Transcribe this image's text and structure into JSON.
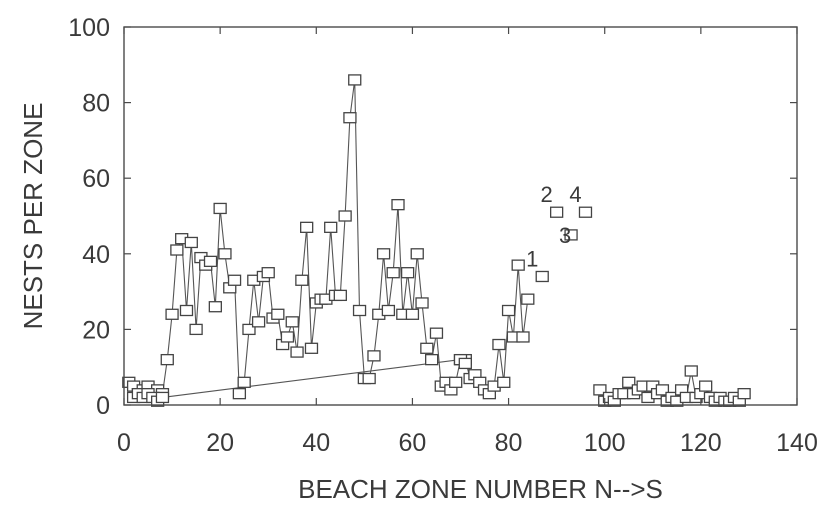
{
  "chart_data": {
    "type": "scatter",
    "title": "",
    "xlabel": "BEACH ZONE NUMBER N-->S",
    "ylabel": "NESTS PER ZONE",
    "xlim": [
      0,
      140
    ],
    "ylim": [
      0,
      100
    ],
    "x_ticks": [
      "0",
      "20",
      "40",
      "60",
      "80",
      "100",
      "120",
      "140"
    ],
    "y_ticks": [
      "0",
      "20",
      "40",
      "60",
      "80",
      "100"
    ],
    "grid": false,
    "legend": "none",
    "marker": "open-square",
    "line_color": "#555555",
    "marker_color": "#444444",
    "series": [
      {
        "x": [
          1,
          2,
          3,
          4,
          5,
          6,
          7,
          8,
          9,
          10,
          11,
          12,
          13,
          14,
          15,
          16,
          17,
          18,
          19,
          20,
          21,
          22,
          23,
          24,
          25,
          26,
          27,
          28,
          29,
          30,
          31,
          32,
          33,
          34,
          35,
          36,
          37,
          38,
          39,
          40,
          41,
          42,
          43,
          44,
          45,
          46,
          47,
          48,
          49,
          50,
          51,
          52,
          53,
          54,
          55,
          56,
          57,
          58,
          59,
          60,
          61,
          62,
          63,
          64,
          65,
          66,
          67,
          68,
          69,
          70,
          71,
          72,
          73,
          74,
          75,
          76,
          77,
          78,
          79,
          80,
          81,
          82,
          83,
          84
        ],
        "y": [
          6,
          5,
          3,
          4,
          5,
          3,
          4,
          3,
          12,
          24,
          41,
          44,
          25,
          43,
          20,
          39,
          37,
          38,
          26,
          52,
          40,
          31,
          33,
          3,
          6,
          20,
          33,
          22,
          34,
          35,
          23,
          24,
          16,
          18,
          22,
          14,
          33,
          47,
          15,
          27,
          28,
          28,
          47,
          29,
          29,
          50,
          76,
          86,
          25,
          7,
          7,
          13,
          24,
          40,
          25,
          35,
          53,
          24,
          35,
          24,
          40,
          27,
          15,
          12,
          19,
          5,
          6,
          4,
          6,
          12,
          12,
          7,
          8,
          6,
          4,
          3,
          5,
          16,
          6,
          25,
          18,
          37,
          18,
          28
        ]
      },
      {
        "x": [
          2,
          3,
          4,
          5,
          6,
          7,
          8,
          70,
          71
        ],
        "y": [
          2,
          3,
          2,
          3,
          2,
          1,
          2,
          12,
          11
        ]
      },
      {
        "x": [
          99,
          100,
          101,
          102,
          103,
          104,
          105,
          106,
          107,
          108,
          109,
          110,
          111,
          112,
          113,
          114,
          115,
          116,
          117,
          118,
          119,
          120,
          121,
          122,
          123,
          124,
          125,
          126,
          127,
          128,
          129
        ],
        "y": [
          4,
          1,
          2,
          1,
          3,
          3,
          6,
          3,
          4,
          5,
          2,
          5,
          3,
          4,
          1,
          2,
          1,
          4,
          2,
          9,
          2,
          3,
          5,
          2,
          1,
          2,
          1,
          1,
          2,
          1,
          3
        ]
      }
    ],
    "labeled_points": [
      {
        "label": "1",
        "x": 87,
        "y": 34
      },
      {
        "label": "2",
        "x": 90,
        "y": 51
      },
      {
        "label": "3",
        "x": 93,
        "y": 45
      },
      {
        "label": "4",
        "x": 96,
        "y": 51
      }
    ]
  }
}
